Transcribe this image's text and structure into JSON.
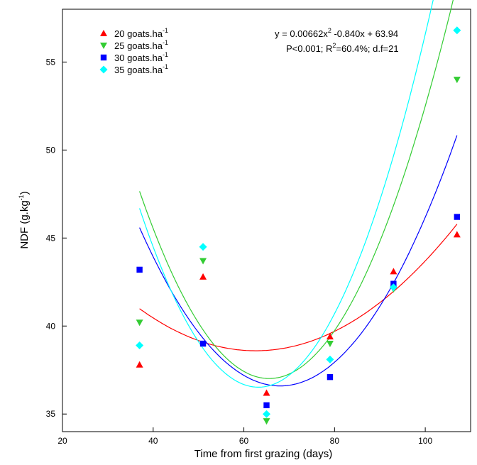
{
  "chart_data": {
    "type": "scatter",
    "xlabel": "Time from first grazing (days)",
    "ylabel": {
      "base": "NDF (g.kg",
      "sup": "-1",
      "tail": ")"
    },
    "xlim": [
      20,
      110
    ],
    "ylim": [
      34,
      58
    ],
    "xticks": [
      20,
      40,
      60,
      80,
      100
    ],
    "yticks": [
      35,
      40,
      45,
      50,
      55
    ],
    "x": [
      37,
      51,
      65,
      79,
      93,
      107
    ],
    "series": [
      {
        "name": "20 goats.ha",
        "name_sup": "-1",
        "marker": "triangle-up",
        "color": "#ff0000",
        "values": [
          37.8,
          42.8,
          36.2,
          39.4,
          43.1,
          45.2
        ],
        "fit": [
          0.00365,
          -0.457,
          52.9
        ]
      },
      {
        "name": "25 goats.ha",
        "name_sup": "-1",
        "marker": "triangle-down",
        "color": "#33cc33",
        "values": [
          40.2,
          43.7,
          34.6,
          39.0,
          42.1,
          54.0
        ],
        "fit": [
          0.01305,
          -1.711,
          93.1
        ]
      },
      {
        "name": "30 goats.ha",
        "name_sup": "-1",
        "marker": "square",
        "color": "#0000ff",
        "values": [
          43.2,
          39.0,
          35.5,
          37.1,
          42.4,
          46.2
        ],
        "fit": [
          0.00936,
          -1.273,
          79.88
        ]
      },
      {
        "name": "35 goats.ha",
        "name_sup": "-1",
        "marker": "diamond",
        "color": "#00ffff",
        "values": [
          38.9,
          44.5,
          35.0,
          38.1,
          42.2,
          56.8
        ],
        "fit": [
          0.01481,
          -1.872,
          95.68
        ]
      }
    ],
    "annotation": {
      "line1_a": "y = 0.00662x",
      "line1_sup": "2",
      "line1_b": " -0.840x + 63.94",
      "line2_a": "P<0.001; R",
      "line2_sup": "2",
      "line2_b": "=60.4%; d.f=21"
    },
    "legend_position": "top-left",
    "grid": false
  }
}
